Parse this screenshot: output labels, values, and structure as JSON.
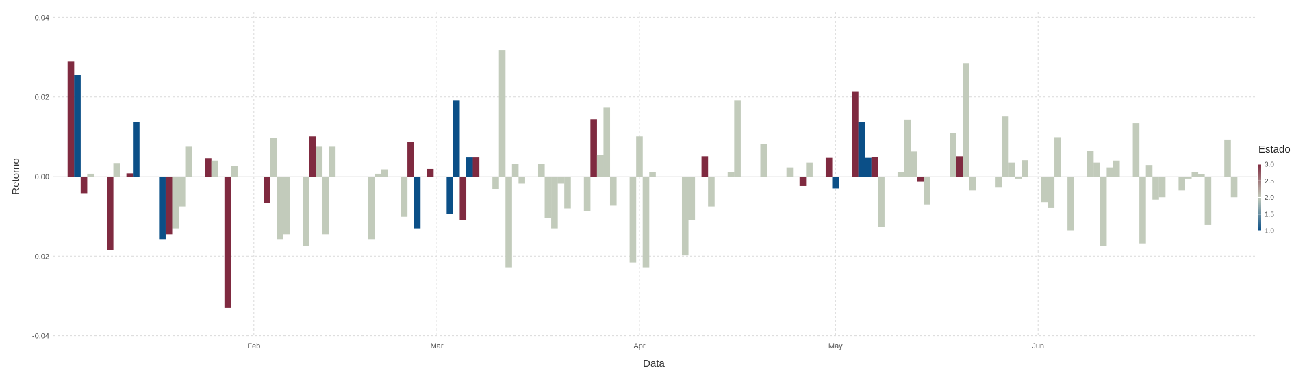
{
  "chart_data": {
    "type": "bar",
    "title": "",
    "xlabel": "Data",
    "ylabel": "Retorno",
    "ylim": [
      -0.042,
      0.042
    ],
    "xlim": [
      "2023-01-03",
      "2023-06-30"
    ],
    "y_ticks": [
      -0.04,
      -0.02,
      0.0,
      0.02,
      0.04
    ],
    "y_tick_labels": [
      "-0.04",
      "-0.02",
      "0.00",
      "0.02",
      "0.04"
    ],
    "x_ticks": [
      "2023-02-01",
      "2023-03-01",
      "2023-04-01",
      "2023-05-01",
      "2023-06-01"
    ],
    "x_tick_labels": [
      "Feb",
      "Mar",
      "Apr",
      "May",
      "Jun"
    ],
    "grid": true,
    "legend": {
      "title": "Estado",
      "placement": "right",
      "type": "colorbar",
      "range": [
        1.0,
        3.0
      ],
      "ticks": [
        3.0,
        2.5,
        2.0,
        1.5,
        1.0
      ],
      "tick_labels": [
        "3.0",
        "2.5",
        "2.0",
        "1.5",
        "1.0"
      ],
      "colors": {
        "low": "#0b4f87",
        "mid": "#c2cbbb",
        "high": "#7f2a40"
      }
    },
    "points": [
      {
        "x": "2023-01-04",
        "y": 0.029,
        "estado": 3
      },
      {
        "x": "2023-01-05",
        "y": 0.0255,
        "estado": 1
      },
      {
        "x": "2023-01-06",
        "y": -0.0042,
        "estado": 3
      },
      {
        "x": "2023-01-07",
        "y": 0.0007,
        "estado": 2
      },
      {
        "x": "2023-01-10",
        "y": -0.0185,
        "estado": 3
      },
      {
        "x": "2023-01-11",
        "y": 0.0034,
        "estado": 2
      },
      {
        "x": "2023-01-13",
        "y": 0.0008,
        "estado": 3
      },
      {
        "x": "2023-01-14",
        "y": 0.0136,
        "estado": 1
      },
      {
        "x": "2023-01-18",
        "y": -0.0157,
        "estado": 1
      },
      {
        "x": "2023-01-19",
        "y": -0.0145,
        "estado": 3
      },
      {
        "x": "2023-01-20",
        "y": -0.013,
        "estado": 2
      },
      {
        "x": "2023-01-21",
        "y": -0.0075,
        "estado": 2
      },
      {
        "x": "2023-01-22",
        "y": 0.0075,
        "estado": 2
      },
      {
        "x": "2023-01-25",
        "y": 0.0046,
        "estado": 3
      },
      {
        "x": "2023-01-26",
        "y": 0.004,
        "estado": 2
      },
      {
        "x": "2023-01-28",
        "y": -0.033,
        "estado": 3
      },
      {
        "x": "2023-01-29",
        "y": 0.0026,
        "estado": 2
      },
      {
        "x": "2023-02-03",
        "y": -0.0066,
        "estado": 3
      },
      {
        "x": "2023-02-04",
        "y": 0.0097,
        "estado": 2
      },
      {
        "x": "2023-02-05",
        "y": -0.0157,
        "estado": 2
      },
      {
        "x": "2023-02-06",
        "y": -0.0145,
        "estado": 2
      },
      {
        "x": "2023-02-09",
        "y": -0.0175,
        "estado": 2
      },
      {
        "x": "2023-02-10",
        "y": 0.0101,
        "estado": 3
      },
      {
        "x": "2023-02-11",
        "y": 0.0075,
        "estado": 2
      },
      {
        "x": "2023-02-12",
        "y": -0.0145,
        "estado": 2
      },
      {
        "x": "2023-02-13",
        "y": 0.0075,
        "estado": 2
      },
      {
        "x": "2023-02-19",
        "y": -0.0157,
        "estado": 2
      },
      {
        "x": "2023-02-20",
        "y": 0.0007,
        "estado": 2
      },
      {
        "x": "2023-02-21",
        "y": 0.0018,
        "estado": 2
      },
      {
        "x": "2023-02-24",
        "y": -0.0101,
        "estado": 2
      },
      {
        "x": "2023-02-25",
        "y": 0.0087,
        "estado": 3
      },
      {
        "x": "2023-02-26",
        "y": -0.013,
        "estado": 1
      },
      {
        "x": "2023-02-28",
        "y": 0.0019,
        "estado": 3
      },
      {
        "x": "2023-03-03",
        "y": -0.0093,
        "estado": 1
      },
      {
        "x": "2023-03-04",
        "y": 0.0192,
        "estado": 1
      },
      {
        "x": "2023-03-05",
        "y": -0.011,
        "estado": 3
      },
      {
        "x": "2023-03-06",
        "y": 0.0048,
        "estado": 1
      },
      {
        "x": "2023-03-07",
        "y": 0.0048,
        "estado": 3
      },
      {
        "x": "2023-03-10",
        "y": -0.0031,
        "estado": 2
      },
      {
        "x": "2023-03-11",
        "y": 0.0318,
        "estado": 2
      },
      {
        "x": "2023-03-12",
        "y": -0.0228,
        "estado": 2
      },
      {
        "x": "2023-03-13",
        "y": 0.0031,
        "estado": 2
      },
      {
        "x": "2023-03-14",
        "y": -0.0018,
        "estado": 2
      },
      {
        "x": "2023-03-17",
        "y": 0.0031,
        "estado": 2
      },
      {
        "x": "2023-03-18",
        "y": -0.0104,
        "estado": 2
      },
      {
        "x": "2023-03-19",
        "y": -0.013,
        "estado": 2
      },
      {
        "x": "2023-03-20",
        "y": -0.0018,
        "estado": 2
      },
      {
        "x": "2023-03-21",
        "y": -0.008,
        "estado": 2
      },
      {
        "x": "2023-03-24",
        "y": -0.0087,
        "estado": 2
      },
      {
        "x": "2023-03-25",
        "y": 0.0144,
        "estado": 3
      },
      {
        "x": "2023-03-26",
        "y": 0.0054,
        "estado": 2
      },
      {
        "x": "2023-03-27",
        "y": 0.0173,
        "estado": 2
      },
      {
        "x": "2023-03-28",
        "y": -0.0073,
        "estado": 2
      },
      {
        "x": "2023-03-31",
        "y": -0.0216,
        "estado": 2
      },
      {
        "x": "2023-04-01",
        "y": 0.0101,
        "estado": 2
      },
      {
        "x": "2023-04-02",
        "y": -0.0228,
        "estado": 2
      },
      {
        "x": "2023-04-03",
        "y": 0.0011,
        "estado": 2
      },
      {
        "x": "2023-04-08",
        "y": -0.0198,
        "estado": 2
      },
      {
        "x": "2023-04-09",
        "y": -0.011,
        "estado": 2
      },
      {
        "x": "2023-04-11",
        "y": 0.0051,
        "estado": 3
      },
      {
        "x": "2023-04-12",
        "y": -0.0075,
        "estado": 2
      },
      {
        "x": "2023-04-15",
        "y": 0.0011,
        "estado": 2
      },
      {
        "x": "2023-04-16",
        "y": 0.0192,
        "estado": 2
      },
      {
        "x": "2023-04-20",
        "y": 0.0081,
        "estado": 2
      },
      {
        "x": "2023-04-24",
        "y": 0.0023,
        "estado": 2
      },
      {
        "x": "2023-04-26",
        "y": -0.0024,
        "estado": 3
      },
      {
        "x": "2023-04-27",
        "y": 0.0035,
        "estado": 2
      },
      {
        "x": "2023-04-30",
        "y": 0.0047,
        "estado": 3
      },
      {
        "x": "2023-05-01",
        "y": -0.003,
        "estado": 1
      },
      {
        "x": "2023-05-04",
        "y": 0.0214,
        "estado": 3
      },
      {
        "x": "2023-05-05",
        "y": 0.0136,
        "estado": 1
      },
      {
        "x": "2023-05-06",
        "y": 0.0047,
        "estado": 1
      },
      {
        "x": "2023-05-07",
        "y": 0.0049,
        "estado": 3
      },
      {
        "x": "2023-05-08",
        "y": -0.0127,
        "estado": 2
      },
      {
        "x": "2023-05-11",
        "y": 0.0011,
        "estado": 2
      },
      {
        "x": "2023-05-12",
        "y": 0.0143,
        "estado": 2
      },
      {
        "x": "2023-05-13",
        "y": 0.0063,
        "estado": 2
      },
      {
        "x": "2023-05-14",
        "y": -0.0013,
        "estado": 3
      },
      {
        "x": "2023-05-15",
        "y": -0.007,
        "estado": 2
      },
      {
        "x": "2023-05-19",
        "y": 0.011,
        "estado": 2
      },
      {
        "x": "2023-05-20",
        "y": 0.0051,
        "estado": 3
      },
      {
        "x": "2023-05-21",
        "y": 0.0285,
        "estado": 2
      },
      {
        "x": "2023-05-22",
        "y": -0.0035,
        "estado": 2
      },
      {
        "x": "2023-05-26",
        "y": -0.0028,
        "estado": 2
      },
      {
        "x": "2023-05-27",
        "y": 0.0151,
        "estado": 2
      },
      {
        "x": "2023-05-28",
        "y": 0.0035,
        "estado": 2
      },
      {
        "x": "2023-05-29",
        "y": -0.0005,
        "estado": 2
      },
      {
        "x": "2023-05-30",
        "y": 0.0041,
        "estado": 2
      },
      {
        "x": "2023-06-02",
        "y": -0.0064,
        "estado": 2
      },
      {
        "x": "2023-06-03",
        "y": -0.0079,
        "estado": 2
      },
      {
        "x": "2023-06-04",
        "y": 0.0099,
        "estado": 2
      },
      {
        "x": "2023-06-06",
        "y": -0.0135,
        "estado": 2
      },
      {
        "x": "2023-06-09",
        "y": 0.0064,
        "estado": 2
      },
      {
        "x": "2023-06-10",
        "y": 0.0035,
        "estado": 2
      },
      {
        "x": "2023-06-11",
        "y": -0.0175,
        "estado": 2
      },
      {
        "x": "2023-06-12",
        "y": 0.0023,
        "estado": 2
      },
      {
        "x": "2023-06-13",
        "y": 0.004,
        "estado": 2
      },
      {
        "x": "2023-06-16",
        "y": 0.0134,
        "estado": 2
      },
      {
        "x": "2023-06-17",
        "y": -0.0168,
        "estado": 2
      },
      {
        "x": "2023-06-18",
        "y": 0.0029,
        "estado": 2
      },
      {
        "x": "2023-06-19",
        "y": -0.0058,
        "estado": 2
      },
      {
        "x": "2023-06-20",
        "y": -0.0052,
        "estado": 2
      },
      {
        "x": "2023-06-23",
        "y": -0.0035,
        "estado": 2
      },
      {
        "x": "2023-06-24",
        "y": -0.0005,
        "estado": 2
      },
      {
        "x": "2023-06-25",
        "y": 0.0012,
        "estado": 2
      },
      {
        "x": "2023-06-26",
        "y": 0.0006,
        "estado": 2
      },
      {
        "x": "2023-06-27",
        "y": -0.0122,
        "estado": 2
      },
      {
        "x": "2023-06-30",
        "y": 0.0093,
        "estado": 2
      },
      {
        "x": "2023-07-01",
        "y": -0.0052,
        "estado": 2
      }
    ]
  }
}
